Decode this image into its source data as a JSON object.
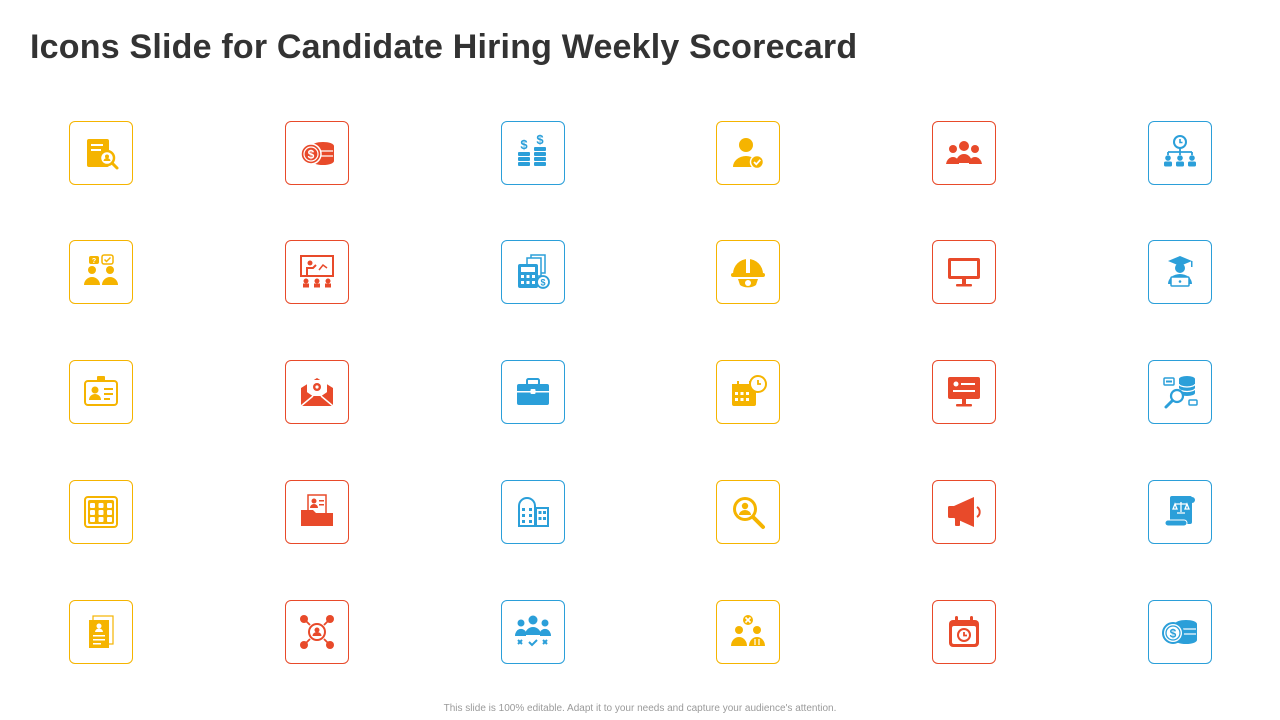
{
  "slide": {
    "title": "Icons Slide for Candidate Hiring Weekly Scorecard",
    "footer": "This slide is 100% editable. Adapt it to your needs and capture your audience's attention."
  },
  "colors": {
    "yellow": "#f5b400",
    "red": "#e84a2a",
    "blue": "#2b9fd9",
    "title": "#333333"
  },
  "icons": [
    [
      "document-search-icon",
      "coin-stack-dollar-icon",
      "dollar-coin-stacks-icon",
      "user-approved-icon",
      "team-group-icon",
      "clock-hierarchy-icon"
    ],
    [
      "discussion-people-icon",
      "presentation-board-icon",
      "calculator-documents-icon",
      "safety-helmet-gear-icon",
      "monitor-icon",
      "graduate-laptop-icon"
    ],
    [
      "id-card-icon",
      "envelope-gear-icon",
      "briefcase-icon",
      "calendar-clock-icon",
      "monitor-profile-icon",
      "database-search-icon"
    ],
    [
      "calendar-grid-icon",
      "folder-profile-icon",
      "office-building-icon",
      "magnify-person-icon",
      "megaphone-icon",
      "legal-scroll-icon"
    ],
    [
      "resume-document-icon",
      "network-person-icon",
      "team-vote-icon",
      "candidate-reject-icon",
      "calendar-alarm-icon",
      "coin-stack-icon"
    ]
  ],
  "row_colors": [
    "yellow",
    "red",
    "blue",
    "yellow",
    "red",
    "blue"
  ]
}
